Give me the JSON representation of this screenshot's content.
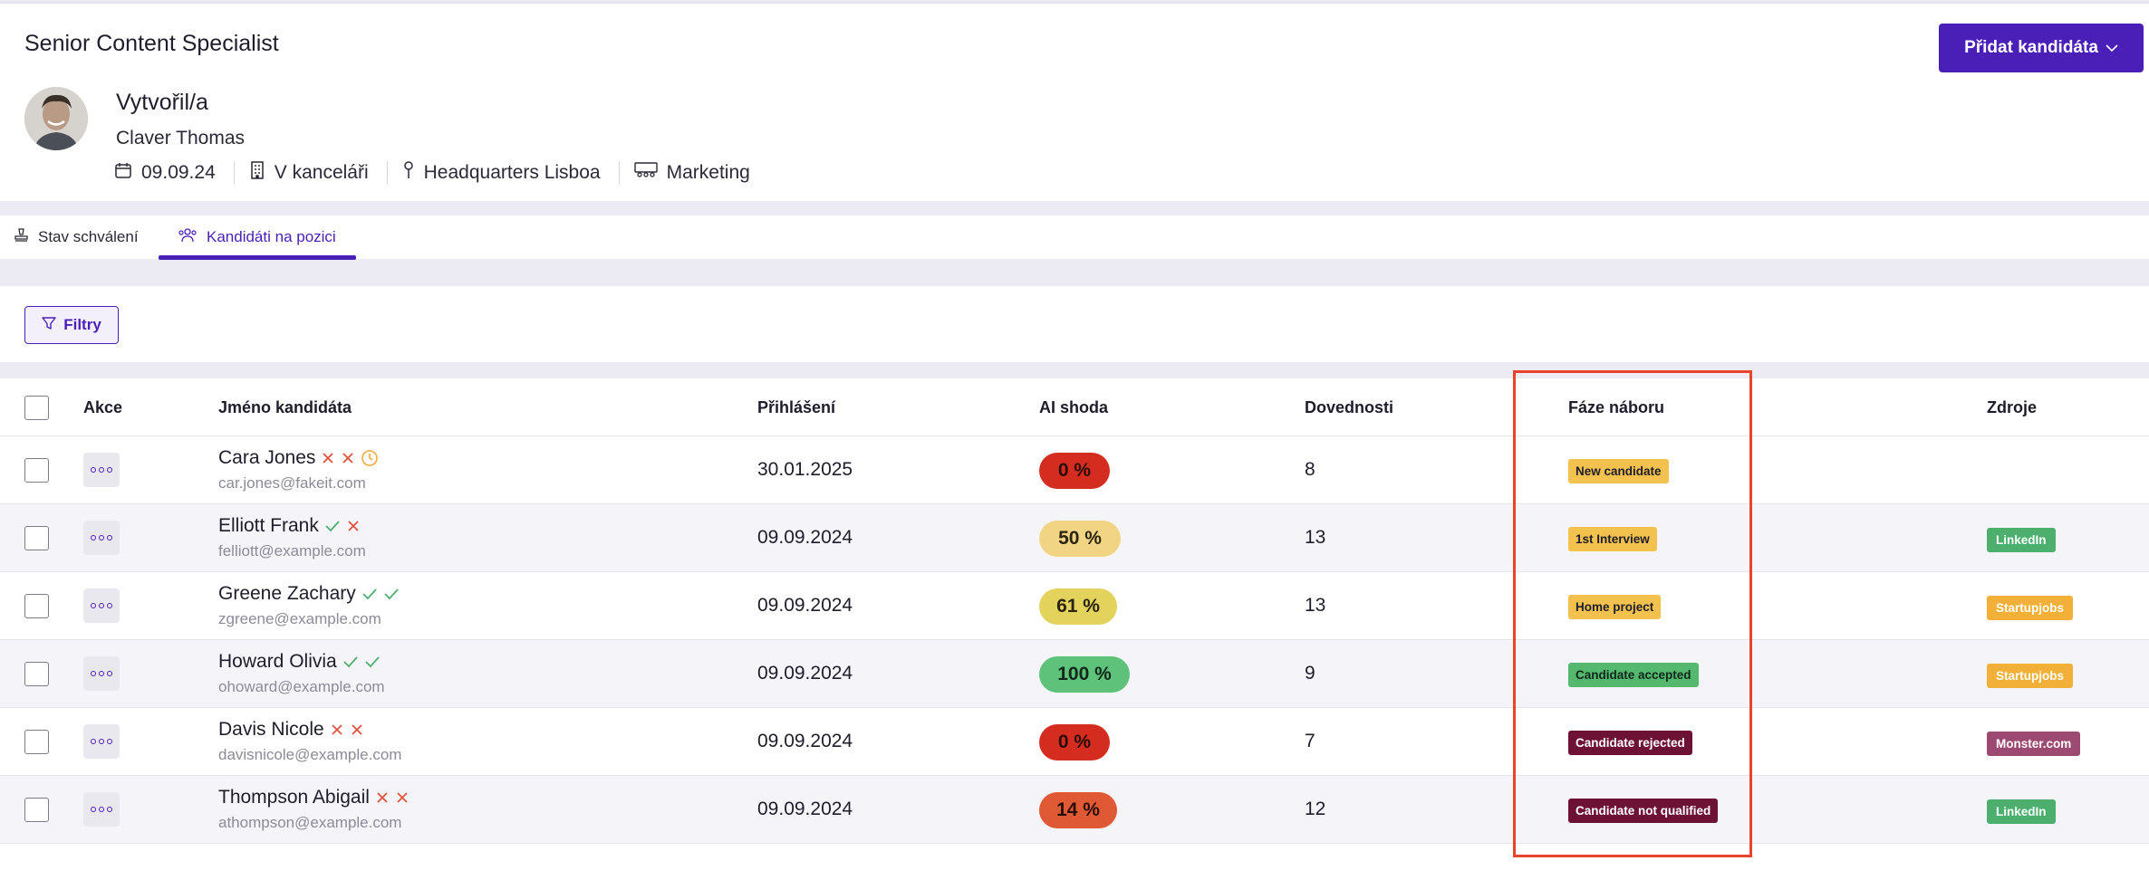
{
  "header": {
    "job_title": "Senior Content Specialist",
    "add_button": "Přidat kandidáta",
    "created_label": "Vytvořil/a",
    "creator": "Claver Thomas",
    "meta": {
      "date": "09.09.24",
      "workplace": "V kanceláři",
      "location": "Headquarters Lisboa",
      "department": "Marketing"
    }
  },
  "tabs": {
    "approval": "Stav schválení",
    "candidates": "Kandidáti na pozici"
  },
  "filters": {
    "label": "Filtry"
  },
  "table": {
    "columns": {
      "actions": "Akce",
      "name": "Jméno kandidáta",
      "applied": "Přihlášení",
      "ai": "AI shoda",
      "skills": "Dovednosti",
      "phase": "Fáze náboru",
      "sources": "Zdroje"
    },
    "rows": [
      {
        "name": "Cara Jones",
        "email": "car.jones@fakeit.com",
        "marks": [
          "cross",
          "cross",
          "clock"
        ],
        "date": "30.01.2025",
        "ai": "0 %",
        "ai_color": "#d42d1f",
        "ai_text": "#2a0d09",
        "ai_width": 78,
        "skills": "8",
        "phase": "New candidate",
        "phase_bg": "#f2c14e",
        "phase_fg": "#1f1d2b",
        "source": "",
        "source_bg": ""
      },
      {
        "name": "Elliott Frank",
        "email": "felliott@example.com",
        "marks": [
          "check",
          "cross"
        ],
        "date": "09.09.2024",
        "ai": "50 %",
        "ai_color": "#f2d584",
        "ai_text": "#2a2410",
        "ai_width": 90,
        "skills": "13",
        "phase": "1st Interview",
        "phase_bg": "#f2c14e",
        "phase_fg": "#1f1d2b",
        "source": "LinkedIn",
        "source_bg": "#4caf6e"
      },
      {
        "name": "Greene Zachary",
        "email": "zgreene@example.com",
        "marks": [
          "check",
          "check"
        ],
        "date": "09.09.2024",
        "ai": "61 %",
        "ai_color": "#e3d35d",
        "ai_text": "#2a2410",
        "ai_width": 86,
        "skills": "13",
        "phase": "Home project",
        "phase_bg": "#f2c14e",
        "phase_fg": "#1f1d2b",
        "source": "Startupjobs",
        "source_bg": "#f2b038"
      },
      {
        "name": "Howard Olivia",
        "email": "ohoward@example.com",
        "marks": [
          "check",
          "check"
        ],
        "date": "09.09.2024",
        "ai": "100 %",
        "ai_color": "#5ec27a",
        "ai_text": "#10281a",
        "ai_width": 100,
        "skills": "9",
        "phase": "Candidate accepted",
        "phase_bg": "#54b86f",
        "phase_fg": "#10281a",
        "source": "Startupjobs",
        "source_bg": "#f2b038"
      },
      {
        "name": "Davis Nicole",
        "email": "davisnicole@example.com",
        "marks": [
          "cross",
          "cross"
        ],
        "date": "09.09.2024",
        "ai": "0 %",
        "ai_color": "#d42d1f",
        "ai_text": "#2a0d09",
        "ai_width": 78,
        "skills": "7",
        "phase": "Candidate rejected",
        "phase_bg": "#6e1235",
        "phase_fg": "#ffffff",
        "source": "Monster.com",
        "source_bg": "#9c4a72"
      },
      {
        "name": "Thompson Abigail",
        "email": "athompson@example.com",
        "marks": [
          "cross",
          "cross"
        ],
        "date": "09.09.2024",
        "ai": "14 %",
        "ai_color": "#df5a34",
        "ai_text": "#2a0d09",
        "ai_width": 86,
        "skills": "12",
        "phase": "Candidate not qualified",
        "phase_bg": "#6e1235",
        "phase_fg": "#ffffff",
        "source": "LinkedIn",
        "source_bg": "#4caf6e"
      }
    ]
  },
  "colors": {
    "accent": "#4a1fb8",
    "highlight": "#e8432c"
  }
}
